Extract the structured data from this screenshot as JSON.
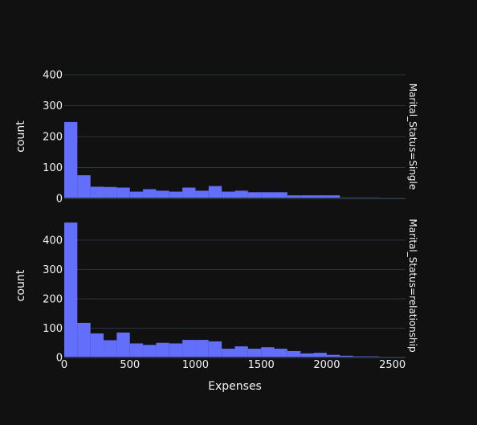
{
  "chart_data": {
    "type": "bar",
    "title": "",
    "xlabel": "Expenses",
    "ylabel": "count",
    "xlim": [
      0,
      2600
    ],
    "x_ticks": [
      0,
      500,
      1000,
      1500,
      2000,
      2500
    ],
    "bin_width": 100,
    "bar_color": "#636efa",
    "background_color": "#111111",
    "grid_color": "#283442",
    "facets": [
      {
        "name": "Marital_Status=Single",
        "ylim": [
          0,
          400
        ],
        "y_ticks": [
          0,
          100,
          200,
          300,
          400
        ],
        "bin_starts": [
          0,
          100,
          200,
          300,
          400,
          500,
          600,
          700,
          800,
          900,
          1000,
          1100,
          1200,
          1300,
          1400,
          1500,
          1600,
          1700,
          1800,
          1900,
          2000,
          2100,
          2200,
          2300,
          2400,
          2500
        ],
        "values": [
          247,
          75,
          38,
          37,
          35,
          22,
          30,
          25,
          22,
          35,
          25,
          40,
          22,
          25,
          20,
          20,
          20,
          10,
          10,
          10,
          10,
          3,
          3,
          3,
          2,
          2
        ]
      },
      {
        "name": "Marital_Status=relationship",
        "ylim": [
          0,
          490
        ],
        "y_ticks": [
          0,
          100,
          200,
          300,
          400
        ],
        "bin_starts": [
          0,
          100,
          200,
          300,
          400,
          500,
          600,
          700,
          800,
          900,
          1000,
          1100,
          1200,
          1300,
          1400,
          1500,
          1600,
          1700,
          1800,
          1900,
          2000,
          2100,
          2200,
          2300,
          2400,
          2500
        ],
        "values": [
          460,
          118,
          82,
          59,
          85,
          48,
          43,
          50,
          48,
          60,
          60,
          55,
          30,
          38,
          30,
          35,
          30,
          22,
          14,
          16,
          9,
          6,
          4,
          4,
          2,
          1
        ]
      }
    ]
  }
}
